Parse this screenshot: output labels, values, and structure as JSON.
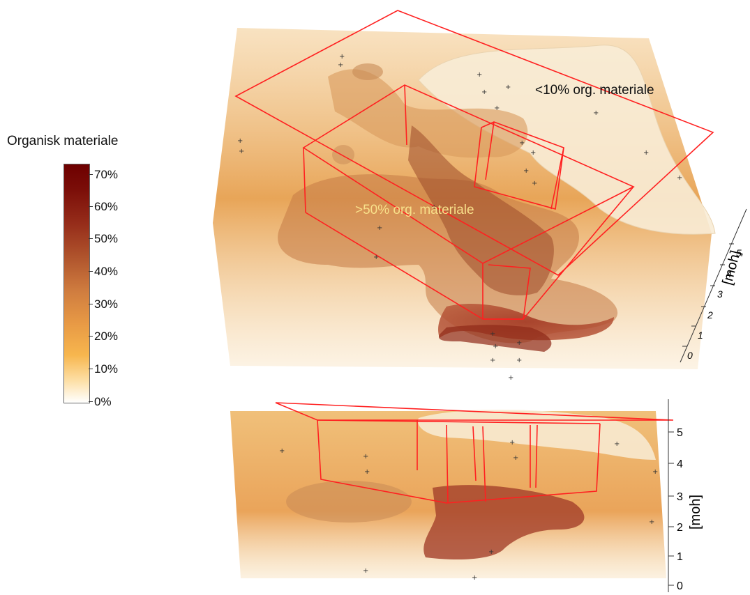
{
  "legend": {
    "title": "Organisk materiale",
    "ticks": [
      "0%",
      "10%",
      "20%",
      "30%",
      "40%",
      "50%",
      "60%",
      "70%"
    ],
    "colors": [
      "#ffffff",
      "#fde0a8",
      "#f7b64e",
      "#e89a45",
      "#cf7c3f",
      "#b2572e",
      "#962d1a",
      "#6e0000"
    ]
  },
  "annotations": {
    "low": "<10% org. materiale",
    "high": ">50% org. materiale"
  },
  "top_axis": {
    "label": "[moh]",
    "ticks": [
      "0",
      "1",
      "2",
      "3",
      "4",
      "5"
    ]
  },
  "bottom_axis": {
    "label": "[moh]",
    "ticks": [
      "0",
      "1",
      "2",
      "3",
      "4",
      "5"
    ]
  },
  "colors": {
    "outline": "#ff2020",
    "low_label": "#111111",
    "high_label": "#f8e08a"
  }
}
